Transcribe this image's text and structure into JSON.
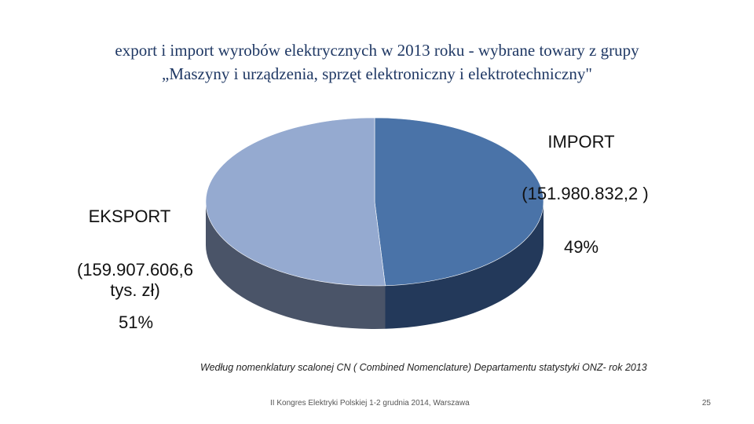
{
  "chart_data": {
    "type": "pie",
    "title": "export i import wyrobów elektrycznych w 2013 roku - wybrane towary z grupy",
    "subtitle": "„Maszyny i urządzenia, sprzęt elektroniczny i elektrotechniczny\"",
    "categories": [
      "IMPORT",
      "EKSPORT"
    ],
    "amount_labels": [
      "(151.980.832,2 )",
      "(159.907.606,6 tys. zł)"
    ],
    "values": [
      49,
      51
    ],
    "value_labels": [
      "49%",
      "51%"
    ],
    "colors": [
      "#4a73a8",
      "#95aad0"
    ],
    "side_colors": [
      "#23395a",
      "#4a5468"
    ],
    "note": "Według nomenklatury scalonej CN ( Combined Nomenclature) Departamentu statystyki ONZ- rok 2013"
  },
  "footer": {
    "text": "II Kongres Elektryki Polskiej 1-2 grudnia 2014, Warszawa",
    "page": "25"
  }
}
